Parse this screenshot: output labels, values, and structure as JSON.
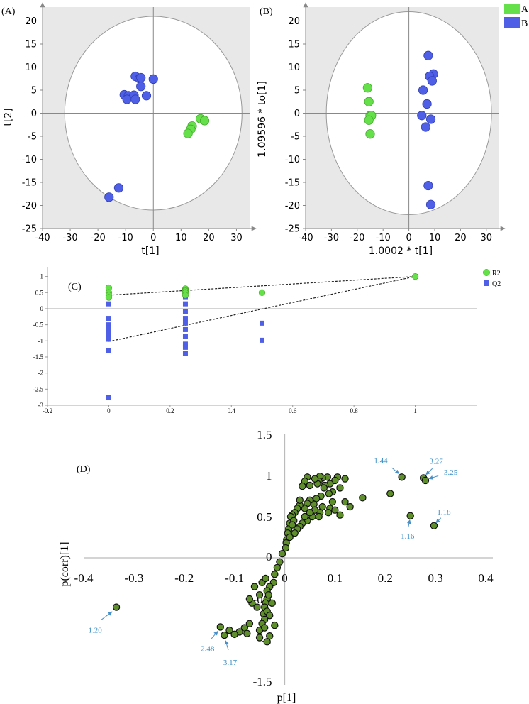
{
  "legend_top": {
    "items": [
      {
        "label": "A",
        "color": "#66e04a"
      },
      {
        "label": "B",
        "color": "#4f5fe6"
      }
    ]
  },
  "chart_data": [
    {
      "panel_label": "(A)",
      "type": "scatter",
      "xlabel": "t[1]",
      "ylabel": "t[2]",
      "xlim": [
        -40,
        35
      ],
      "ylim": [
        -25,
        23
      ],
      "xticks": [
        -40,
        -30,
        -20,
        -10,
        0,
        10,
        20,
        30
      ],
      "yticks": [
        -25,
        -20,
        -15,
        -10,
        -5,
        0,
        5,
        10,
        15,
        20
      ],
      "ellipse": {
        "rx": 32,
        "ry": 21
      },
      "series": [
        {
          "name": "A",
          "color": "#66e04a",
          "points": [
            [
              17,
              -1.2
            ],
            [
              18.5,
              -1.6
            ],
            [
              14,
              -2.8
            ],
            [
              13.5,
              -3.5
            ],
            [
              12.5,
              -4.4
            ]
          ]
        },
        {
          "name": "B",
          "color": "#4f5fe6",
          "points": [
            [
              -6.5,
              8
            ],
            [
              -5,
              7.5
            ],
            [
              -4.5,
              7.7
            ],
            [
              0,
              7.4
            ],
            [
              -4.5,
              5.8
            ],
            [
              -10.5,
              4
            ],
            [
              -9,
              3.8
            ],
            [
              -7,
              3.9
            ],
            [
              -2.5,
              3.8
            ],
            [
              -9.5,
              3
            ],
            [
              -6.5,
              3
            ],
            [
              -16,
              -18.2
            ],
            [
              -12.5,
              -16.2
            ]
          ]
        }
      ]
    },
    {
      "panel_label": "(B)",
      "type": "scatter",
      "xlabel": "1.0002 * t[1]",
      "ylabel": "1.09596 * to[1]",
      "xlim": [
        -40,
        35
      ],
      "ylim": [
        -25,
        23
      ],
      "xticks": [
        -40,
        -30,
        -20,
        -10,
        0,
        10,
        20,
        30
      ],
      "yticks": [
        -25,
        -20,
        -15,
        -10,
        -5,
        0,
        5,
        10,
        15,
        20
      ],
      "ellipse": {
        "rx": 32,
        "ry": 22
      },
      "series": [
        {
          "name": "A",
          "color": "#66e04a",
          "points": [
            [
              -16,
              5.5
            ],
            [
              -15.5,
              2.5
            ],
            [
              -15,
              -0.5
            ],
            [
              -14.5,
              -0.5
            ],
            [
              -15.5,
              -1.5
            ],
            [
              -15,
              -4.5
            ]
          ]
        },
        {
          "name": "B",
          "color": "#4f5fe6",
          "points": [
            [
              7.5,
              12.5
            ],
            [
              9.5,
              8.5
            ],
            [
              8,
              8
            ],
            [
              9,
              7
            ],
            [
              5.5,
              5
            ],
            [
              7,
              2
            ],
            [
              5,
              -0.5
            ],
            [
              8.5,
              -1.3
            ],
            [
              6.5,
              -3
            ],
            [
              7.5,
              -15.7
            ],
            [
              8.5,
              -19.8
            ]
          ]
        }
      ]
    },
    {
      "panel_label": "(C)",
      "type": "scatter",
      "xlim": [
        -0.2,
        1.2
      ],
      "ylim": [
        -3,
        1.3
      ],
      "xticks": [
        -0.2,
        0,
        0.2,
        0.4,
        0.6,
        0.8,
        1
      ],
      "yticks": [
        1,
        0.5,
        0,
        -0.5,
        -1,
        -1.5,
        -2,
        -2.5,
        -3
      ],
      "ytick_labels": [
        "1",
        "0.5",
        "0",
        "-0.5",
        "-1",
        "-1.5",
        "-2",
        "-2.5",
        "-3"
      ],
      "series": [
        {
          "name": "R2",
          "color": "#66e04a",
          "marker": "circle",
          "points": [
            [
              0,
              0.65
            ],
            [
              0,
              0.5
            ],
            [
              0,
              0.42
            ],
            [
              0,
              0.35
            ],
            [
              0.25,
              0.62
            ],
            [
              0.25,
              0.58
            ],
            [
              0.25,
              0.55
            ],
            [
              0.25,
              0.5
            ],
            [
              0.25,
              0.42
            ],
            [
              0.5,
              0.5
            ],
            [
              1,
              1
            ]
          ]
        },
        {
          "name": "Q2",
          "color": "#4f5fe6",
          "marker": "square",
          "points": [
            [
              0,
              0.15
            ],
            [
              0,
              -0.3
            ],
            [
              0,
              -0.5
            ],
            [
              0,
              -0.6
            ],
            [
              0,
              -0.75
            ],
            [
              0,
              -0.85
            ],
            [
              0,
              -0.95
            ],
            [
              0,
              -1.3
            ],
            [
              0,
              -2.75
            ],
            [
              0.25,
              0.35
            ],
            [
              0.25,
              0.15
            ],
            [
              0.25,
              -0.1
            ],
            [
              0.25,
              -0.3
            ],
            [
              0.25,
              -0.45
            ],
            [
              0.25,
              -0.65
            ],
            [
              0.25,
              -0.85
            ],
            [
              0.25,
              -1.1
            ],
            [
              0.25,
              -1.2
            ],
            [
              0.25,
              -1.4
            ],
            [
              0.5,
              -0.45
            ],
            [
              0.5,
              -0.98
            ],
            [
              1,
              1
            ]
          ]
        }
      ],
      "fit_lines": [
        {
          "from": [
            0,
            0.42
          ],
          "to": [
            1,
            1
          ]
        },
        {
          "from": [
            0,
            -1.02
          ],
          "to": [
            1,
            1
          ]
        }
      ]
    },
    {
      "panel_label": "(D)",
      "type": "scatter",
      "xlabel": "p[1]",
      "ylabel": "p(corr)[1]",
      "xlim": [
        -0.4,
        0.4
      ],
      "ylim": [
        -1.5,
        1.5
      ],
      "xticks": [
        -0.4,
        -0.3,
        -0.2,
        -0.1,
        0,
        0.1,
        0.2,
        0.3,
        0.4
      ],
      "xtick_labels": [
        "-0.4",
        "-0.3",
        "-0.2",
        "-0.1",
        "0",
        "0.1",
        "0.2",
        "0.3",
        "0.4"
      ],
      "yticks": [
        -1.5,
        -1,
        -0.5,
        0,
        0.5,
        1,
        1.5
      ],
      "ytick_labels": [
        "-1.5",
        "-1",
        "-0.5",
        "0",
        "0.5",
        "1",
        "1.5"
      ],
      "color": "#5f8f2a",
      "points": [
        [
          0.233,
          0.98
        ],
        [
          0.276,
          0.97
        ],
        [
          0.28,
          0.94
        ],
        [
          0.25,
          0.51
        ],
        [
          0.297,
          0.39
        ],
        [
          0.21,
          0.78
        ],
        [
          0.155,
          0.73
        ],
        [
          0.12,
          0.96
        ],
        [
          0.105,
          0.98
        ],
        [
          0.1,
          0.94
        ],
        [
          0.09,
          0.9
        ],
        [
          0.085,
          0.98
        ],
        [
          0.075,
          0.97
        ],
        [
          0.07,
          0.99
        ],
        [
          0.068,
          0.93
        ],
        [
          0.065,
          0.9
        ],
        [
          0.06,
          0.96
        ],
        [
          0.05,
          0.88
        ],
        [
          0.045,
          0.98
        ],
        [
          0.04,
          0.93
        ],
        [
          0.035,
          0.87
        ],
        [
          0.08,
          0.88
        ],
        [
          0.078,
          0.85
        ],
        [
          0.11,
          0.85
        ],
        [
          0.095,
          0.8
        ],
        [
          0.088,
          0.78
        ],
        [
          0.072,
          0.75
        ],
        [
          0.063,
          0.72
        ],
        [
          0.058,
          0.65
        ],
        [
          0.05,
          0.7
        ],
        [
          0.045,
          0.66
        ],
        [
          0.04,
          0.6
        ],
        [
          0.03,
          0.64
        ],
        [
          0.03,
          0.7
        ],
        [
          0.025,
          0.6
        ],
        [
          0.02,
          0.55
        ],
        [
          0.015,
          0.52
        ],
        [
          0.012,
          0.5
        ],
        [
          0.01,
          0.42
        ],
        [
          0.008,
          0.35
        ],
        [
          0.006,
          0.3
        ],
        [
          0.004,
          0.22
        ],
        [
          0.003,
          0.18
        ],
        [
          0.002,
          0.12
        ],
        [
          0.075,
          0.62
        ],
        [
          0.07,
          0.55
        ],
        [
          0.068,
          0.5
        ],
        [
          0.06,
          0.58
        ],
        [
          0.055,
          0.5
        ],
        [
          0.05,
          0.55
        ],
        [
          0.045,
          0.45
        ],
        [
          0.04,
          0.5
        ],
        [
          0.035,
          0.42
        ],
        [
          0.03,
          0.38
        ],
        [
          0.025,
          0.35
        ],
        [
          0.02,
          0.3
        ],
        [
          0.018,
          0.45
        ],
        [
          0.09,
          0.6
        ],
        [
          0.1,
          0.58
        ],
        [
          0.11,
          0.52
        ],
        [
          0.087,
          0.55
        ],
        [
          0.095,
          0.68
        ],
        [
          0.12,
          0.68
        ],
        [
          0.13,
          0.62
        ],
        [
          0.015,
          0.4
        ],
        [
          0.01,
          0.25
        ],
        [
          -0.005,
          0.05
        ],
        [
          -0.01,
          -0.05
        ],
        [
          -0.015,
          -0.12
        ],
        [
          -0.02,
          -0.2
        ],
        [
          -0.022,
          -0.3
        ],
        [
          -0.03,
          -0.35
        ],
        [
          -0.035,
          -0.4
        ],
        [
          -0.035,
          -0.5
        ],
        [
          -0.038,
          -0.55
        ],
        [
          -0.04,
          -0.6
        ],
        [
          -0.042,
          -0.68
        ],
        [
          -0.04,
          -0.75
        ],
        [
          -0.045,
          -0.8
        ],
        [
          -0.05,
          -0.88
        ],
        [
          -0.035,
          -0.65
        ],
        [
          -0.04,
          -0.85
        ],
        [
          -0.03,
          -0.7
        ],
        [
          -0.025,
          -0.55
        ],
        [
          -0.032,
          -0.45
        ],
        [
          -0.055,
          -0.6
        ],
        [
          -0.065,
          -0.55
        ],
        [
          -0.07,
          -0.5
        ],
        [
          -0.06,
          -0.35
        ],
        [
          -0.05,
          -0.45
        ],
        [
          -0.045,
          -0.3
        ],
        [
          -0.038,
          -0.25
        ],
        [
          -0.07,
          -0.8
        ],
        [
          -0.08,
          -0.85
        ],
        [
          -0.075,
          -0.92
        ],
        [
          -0.09,
          -0.9
        ],
        [
          -0.1,
          -0.93
        ],
        [
          -0.11,
          -0.88
        ],
        [
          -0.03,
          -0.95
        ],
        [
          -0.035,
          -1.02
        ],
        [
          -0.05,
          -0.97
        ],
        [
          -0.02,
          -0.82
        ],
        [
          -0.128,
          -0.84
        ],
        [
          -0.12,
          -0.94
        ],
        [
          -0.335,
          -0.6
        ]
      ],
      "annotations": [
        {
          "label": "1.44",
          "point": [
            0.233,
            0.98
          ]
        },
        {
          "label": "3.27",
          "point": [
            0.276,
            0.97
          ]
        },
        {
          "label": "3.25",
          "point": [
            0.28,
            0.94
          ]
        },
        {
          "label": "1.18",
          "point": [
            0.297,
            0.39
          ]
        },
        {
          "label": "1.16",
          "point": [
            0.25,
            0.51
          ]
        },
        {
          "label": "1.20",
          "point": [
            -0.335,
            -0.6
          ]
        },
        {
          "label": "2.48",
          "point": [
            -0.128,
            -0.84
          ]
        },
        {
          "label": "3.17",
          "point": [
            -0.12,
            -0.94
          ]
        }
      ]
    }
  ]
}
